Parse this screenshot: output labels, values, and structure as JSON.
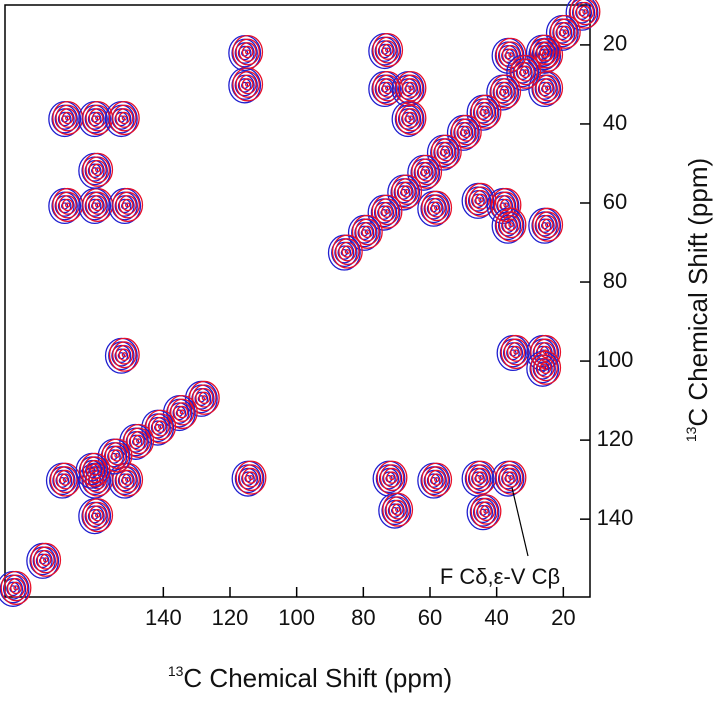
{
  "chart_data": {
    "type": "contour",
    "x_label": {
      "sup": "13",
      "text": "C Chemical Shift (ppm)"
    },
    "y_label": {
      "sup": "13",
      "text": "C Chemical Shift (ppm)"
    },
    "annotation": {
      "text": "F Cδ,ε-V Cβ",
      "x": 36,
      "y": 130
    },
    "xlim": [
      187.5,
      12
    ],
    "ylim": [
      9.9,
      159.7
    ],
    "xticks": [
      140,
      120,
      100,
      80,
      60,
      40,
      20
    ],
    "yticks": [
      20,
      40,
      60,
      80,
      100,
      120,
      140
    ],
    "colors": [
      "#1f1fd0",
      "#e81028"
    ],
    "peaks": {
      "x": [
        169,
        160,
        152,
        169,
        160,
        151,
        160,
        115,
        73,
        73,
        66,
        66,
        36,
        25,
        25,
        45,
        37.5,
        36,
        25,
        58.3,
        34.5,
        25.6,
        25.6,
        152,
        169.7,
        160,
        151,
        160,
        71.7,
        70,
        58.3,
        45,
        43.5,
        36,
        114,
        115,
        13.8,
        19.7,
        25.7,
        31.6,
        37.6,
        43.5,
        49.4,
        55.4,
        61.3,
        67.3,
        73.2,
        79.1,
        85.1,
        128,
        134.6,
        141.1,
        147.7,
        154.2,
        160.8,
        175.6,
        184.5
      ],
      "y": [
        38.5,
        38.5,
        38.5,
        60.5,
        60.5,
        60.5,
        51.6,
        21.8,
        21.3,
        30.9,
        30.9,
        38.5,
        22.5,
        22.5,
        30.9,
        59.2,
        60.5,
        65.5,
        65.5,
        61.2,
        97.7,
        97.7,
        101.7,
        98.4,
        130,
        130,
        130,
        139,
        129.5,
        137.6,
        130,
        129.5,
        138,
        129.5,
        129.5,
        30,
        11.6,
        16.7,
        21.7,
        26.8,
        31.8,
        36.9,
        42.0,
        47.0,
        52.1,
        57.1,
        62.2,
        67.3,
        72.3,
        109.3,
        112.9,
        116.6,
        120.2,
        123.9,
        127.5,
        150.3,
        157.4
      ]
    }
  }
}
